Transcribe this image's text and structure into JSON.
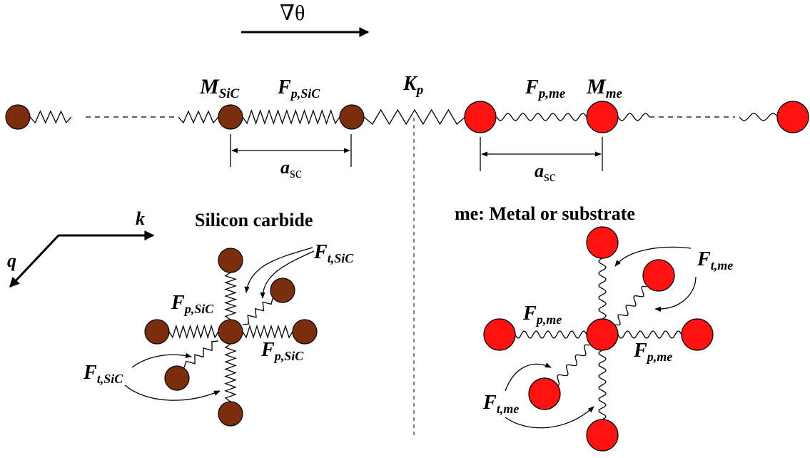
{
  "colors": {
    "sic_atom": "#7a2e0e",
    "me_atom": "#ff1212",
    "stroke": "#000000"
  },
  "gradient_label": "∇θ",
  "top_row": {
    "m_sic": {
      "main": "M",
      "sub": "SiC"
    },
    "f_p_sic": {
      "main": "F",
      "sub": "p,SiC"
    },
    "k_p": {
      "main": "K",
      "sub": "p"
    },
    "f_p_me": {
      "main": "F",
      "sub": "p,me"
    },
    "m_me": {
      "main": "M",
      "sub": "me"
    },
    "a_sc_left": {
      "main": "a",
      "sub": "sc"
    },
    "a_sc_right": {
      "main": "a",
      "sub": "sc"
    }
  },
  "axes": {
    "k": "k",
    "q": "q"
  },
  "silicon_carbide": {
    "title": "Silicon carbide",
    "f_t_top": {
      "main": "F",
      "sub": "t,SiC"
    },
    "f_p_left": {
      "main": "F",
      "sub": "p,SiC"
    },
    "f_p_right": {
      "main": "F",
      "sub": "p,SiC"
    },
    "f_t_bottom": {
      "main": "F",
      "sub": "t,SiC"
    }
  },
  "metal": {
    "title": "me: Metal or substrate",
    "f_t_top": {
      "main": "F",
      "sub": "t,me"
    },
    "f_p_left": {
      "main": "F",
      "sub": "p,me"
    },
    "f_p_right": {
      "main": "F",
      "sub": "p,me"
    },
    "f_t_bottom": {
      "main": "F",
      "sub": "t,me"
    }
  }
}
